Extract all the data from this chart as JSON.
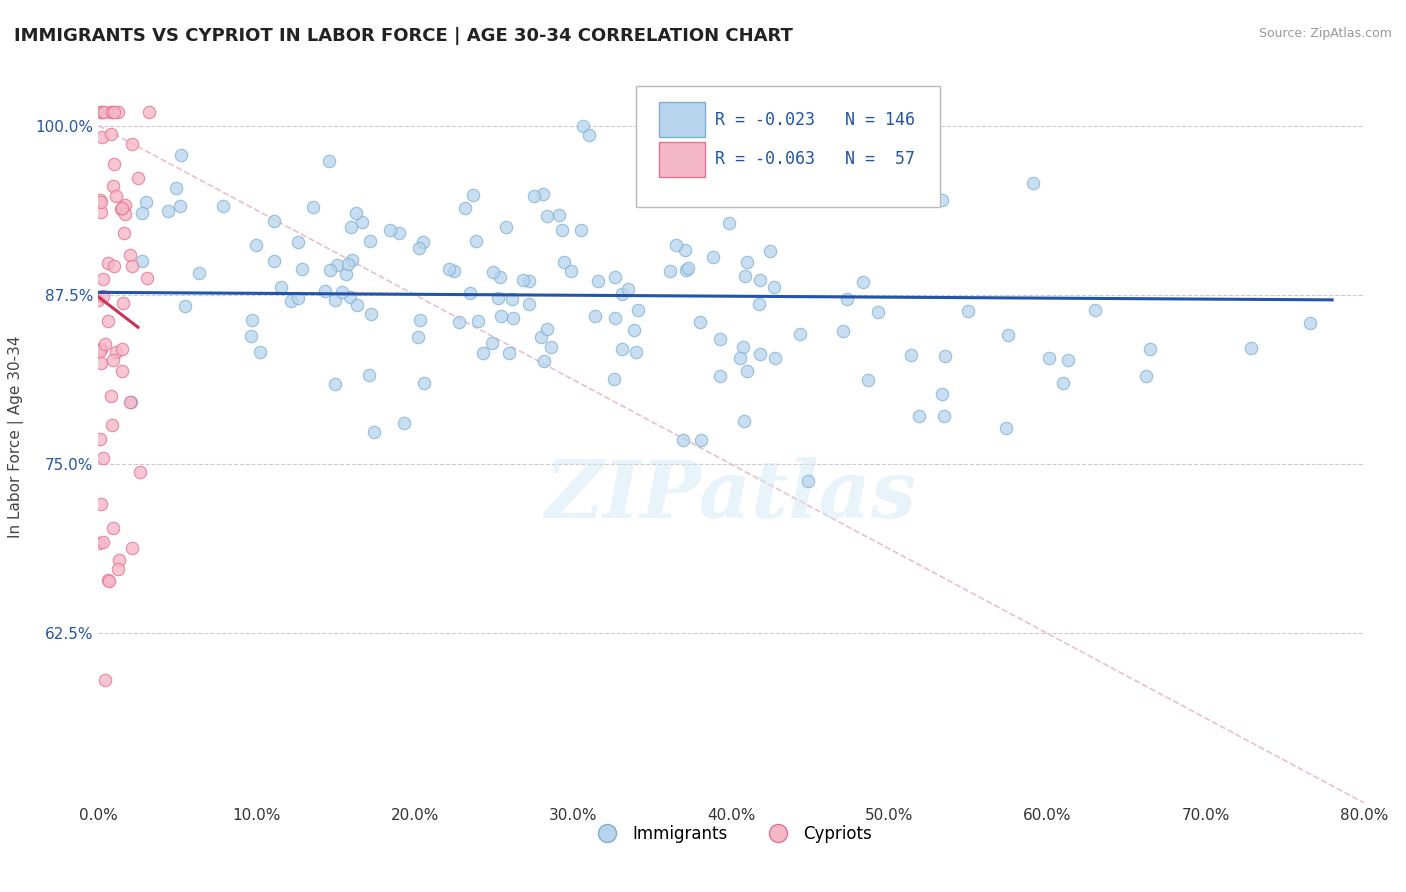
{
  "title": "IMMIGRANTS VS CYPRIOT IN LABOR FORCE | AGE 30-34 CORRELATION CHART",
  "source_text": "Source: ZipAtlas.com",
  "ylabel": "In Labor Force | Age 30-34",
  "xlim": [
    0.0,
    0.8
  ],
  "ylim": [
    0.5,
    1.04
  ],
  "xtick_labels": [
    "0.0%",
    "10.0%",
    "20.0%",
    "30.0%",
    "40.0%",
    "50.0%",
    "60.0%",
    "70.0%",
    "80.0%"
  ],
  "xtick_values": [
    0.0,
    0.1,
    0.2,
    0.3,
    0.4,
    0.5,
    0.6,
    0.7,
    0.8
  ],
  "ytick_labels": [
    "62.5%",
    "75.0%",
    "87.5%",
    "100.0%"
  ],
  "ytick_values": [
    0.625,
    0.75,
    0.875,
    1.0
  ],
  "blue_fill": "#b8d4ec",
  "blue_edge": "#7bafd4",
  "pink_fill": "#f4b8c8",
  "pink_edge": "#e87090",
  "trend_blue": "#2255aa",
  "trend_pink": "#cc3355",
  "diag_line_color": "#e8b8c8",
  "R_blue": -0.023,
  "N_blue": 146,
  "R_pink": -0.063,
  "N_pink": 57,
  "legend_label_blue": "Immigrants",
  "legend_label_pink": "Cypriots",
  "watermark": "ZIPatlas",
  "background_color": "#ffffff",
  "grid_color": "#cccccc",
  "title_fontsize": 13,
  "seed": 42
}
